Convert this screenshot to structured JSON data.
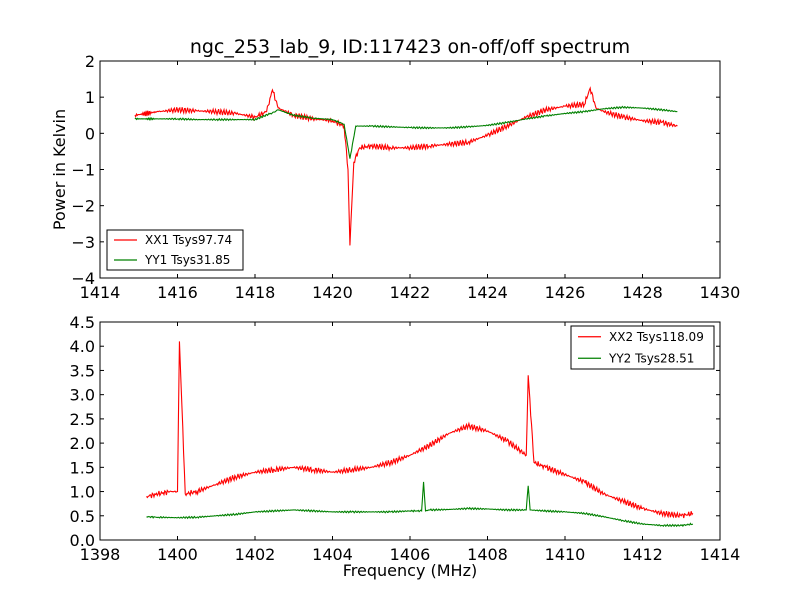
{
  "title": "ngc_253_lab_9, ID:117423 on-off/off spectrum",
  "chart_data": [
    {
      "type": "line",
      "title": "ngc_253_lab_9, ID:117423 on-off/off spectrum",
      "xlabel": "",
      "ylabel": "Power in Kelvin",
      "xlim": [
        1414,
        1430
      ],
      "ylim": [
        -4,
        2
      ],
      "xticks": [
        1414,
        1416,
        1418,
        1420,
        1422,
        1424,
        1426,
        1428,
        1430
      ],
      "yticks": [
        -4,
        -3,
        -2,
        -1,
        0,
        1,
        2
      ],
      "xtick_labels": [
        "1414",
        "1416",
        "1418",
        "1420",
        "1422",
        "1424",
        "1426",
        "1428",
        "1430"
      ],
      "ytick_labels": [
        "−4",
        "−3",
        "−2",
        "−1",
        "0",
        "1",
        "2"
      ],
      "legend_position": "lower-left",
      "series": [
        {
          "name": "XX1 Tsys97.74",
          "color": "#ff0000",
          "x": [
            1414.9,
            1415.5,
            1416.0,
            1416.5,
            1417.0,
            1417.5,
            1418.0,
            1418.3,
            1418.45,
            1418.6,
            1419.0,
            1419.5,
            1420.0,
            1420.3,
            1420.4,
            1420.45,
            1420.55,
            1420.7,
            1421.0,
            1421.5,
            1422.0,
            1422.5,
            1423.0,
            1423.5,
            1424.0,
            1424.5,
            1425.0,
            1425.5,
            1426.0,
            1426.5,
            1426.65,
            1426.8,
            1427.0,
            1427.5,
            1428.0,
            1428.5,
            1428.9
          ],
          "y": [
            0.5,
            0.6,
            0.65,
            0.62,
            0.6,
            0.55,
            0.45,
            0.6,
            1.2,
            0.7,
            0.5,
            0.4,
            0.35,
            0.2,
            -1.0,
            -3.1,
            -0.8,
            -0.4,
            -0.35,
            -0.4,
            -0.4,
            -0.35,
            -0.3,
            -0.25,
            -0.05,
            0.2,
            0.45,
            0.65,
            0.75,
            0.8,
            1.25,
            0.7,
            0.6,
            0.45,
            0.35,
            0.3,
            0.2
          ]
        },
        {
          "name": "YY1 Tsys31.85",
          "color": "#008000",
          "x": [
            1414.9,
            1415.5,
            1416.0,
            1416.5,
            1417.0,
            1417.5,
            1418.0,
            1418.4,
            1418.6,
            1419.0,
            1419.5,
            1420.0,
            1420.3,
            1420.45,
            1420.6,
            1421.0,
            1421.5,
            1422.0,
            1422.5,
            1423.0,
            1423.5,
            1424.0,
            1424.5,
            1425.0,
            1425.5,
            1426.0,
            1426.5,
            1427.0,
            1427.5,
            1428.0,
            1428.5,
            1428.9
          ],
          "y": [
            0.4,
            0.4,
            0.4,
            0.38,
            0.38,
            0.38,
            0.38,
            0.55,
            0.65,
            0.5,
            0.42,
            0.38,
            0.25,
            -0.7,
            0.2,
            0.2,
            0.18,
            0.16,
            0.15,
            0.15,
            0.18,
            0.22,
            0.3,
            0.4,
            0.48,
            0.55,
            0.6,
            0.68,
            0.72,
            0.7,
            0.65,
            0.6
          ]
        }
      ]
    },
    {
      "type": "line",
      "title": "",
      "xlabel": "Frequency (MHz)",
      "ylabel": "",
      "xlim": [
        1398,
        1414
      ],
      "ylim": [
        0.0,
        4.5
      ],
      "xticks": [
        1398,
        1400,
        1402,
        1404,
        1406,
        1408,
        1410,
        1412,
        1414
      ],
      "yticks": [
        0.0,
        0.5,
        1.0,
        1.5,
        2.0,
        2.5,
        3.0,
        3.5,
        4.0,
        4.5
      ],
      "xtick_labels": [
        "1398",
        "1400",
        "1402",
        "1404",
        "1406",
        "1408",
        "1410",
        "1412",
        "1414"
      ],
      "ytick_labels": [
        "0.0",
        "0.5",
        "1.0",
        "1.5",
        "2.0",
        "2.5",
        "3.0",
        "3.5",
        "4.0",
        "4.5"
      ],
      "legend_position": "top-right",
      "series": [
        {
          "name": "XX2 Tsys118.09",
          "color": "#ff0000",
          "x": [
            1399.2,
            1399.5,
            1399.8,
            1400.0,
            1400.05,
            1400.2,
            1400.5,
            1401.0,
            1401.5,
            1402.0,
            1402.5,
            1403.0,
            1403.5,
            1404.0,
            1404.5,
            1405.0,
            1405.5,
            1406.0,
            1406.5,
            1407.0,
            1407.5,
            1408.0,
            1408.5,
            1409.0,
            1409.05,
            1409.2,
            1409.5,
            1410.0,
            1410.5,
            1411.0,
            1411.5,
            1412.0,
            1412.5,
            1413.0,
            1413.3
          ],
          "y": [
            0.9,
            0.95,
            1.0,
            1.0,
            4.1,
            0.95,
            1.0,
            1.15,
            1.3,
            1.4,
            1.45,
            1.5,
            1.45,
            1.4,
            1.45,
            1.5,
            1.6,
            1.75,
            1.95,
            2.2,
            2.35,
            2.25,
            2.05,
            1.75,
            3.4,
            1.6,
            1.5,
            1.35,
            1.2,
            0.95,
            0.8,
            0.65,
            0.55,
            0.5,
            0.55
          ]
        },
        {
          "name": "YY2 Tsys28.51",
          "color": "#008000",
          "x": [
            1399.2,
            1399.5,
            1400.0,
            1400.5,
            1401.0,
            1401.5,
            1402.0,
            1402.5,
            1403.0,
            1403.5,
            1404.0,
            1404.5,
            1405.0,
            1405.5,
            1406.0,
            1406.3,
            1406.35,
            1406.4,
            1406.5,
            1407.0,
            1407.5,
            1408.0,
            1408.5,
            1409.0,
            1409.05,
            1409.1,
            1409.5,
            1410.0,
            1410.5,
            1411.0,
            1411.5,
            1412.0,
            1412.5,
            1413.0,
            1413.3
          ],
          "y": [
            0.48,
            0.47,
            0.46,
            0.47,
            0.5,
            0.53,
            0.58,
            0.6,
            0.62,
            0.6,
            0.58,
            0.58,
            0.58,
            0.58,
            0.6,
            0.6,
            1.2,
            0.6,
            0.62,
            0.63,
            0.65,
            0.64,
            0.62,
            0.62,
            1.12,
            0.62,
            0.6,
            0.58,
            0.55,
            0.48,
            0.4,
            0.33,
            0.3,
            0.3,
            0.33
          ]
        }
      ]
    }
  ]
}
